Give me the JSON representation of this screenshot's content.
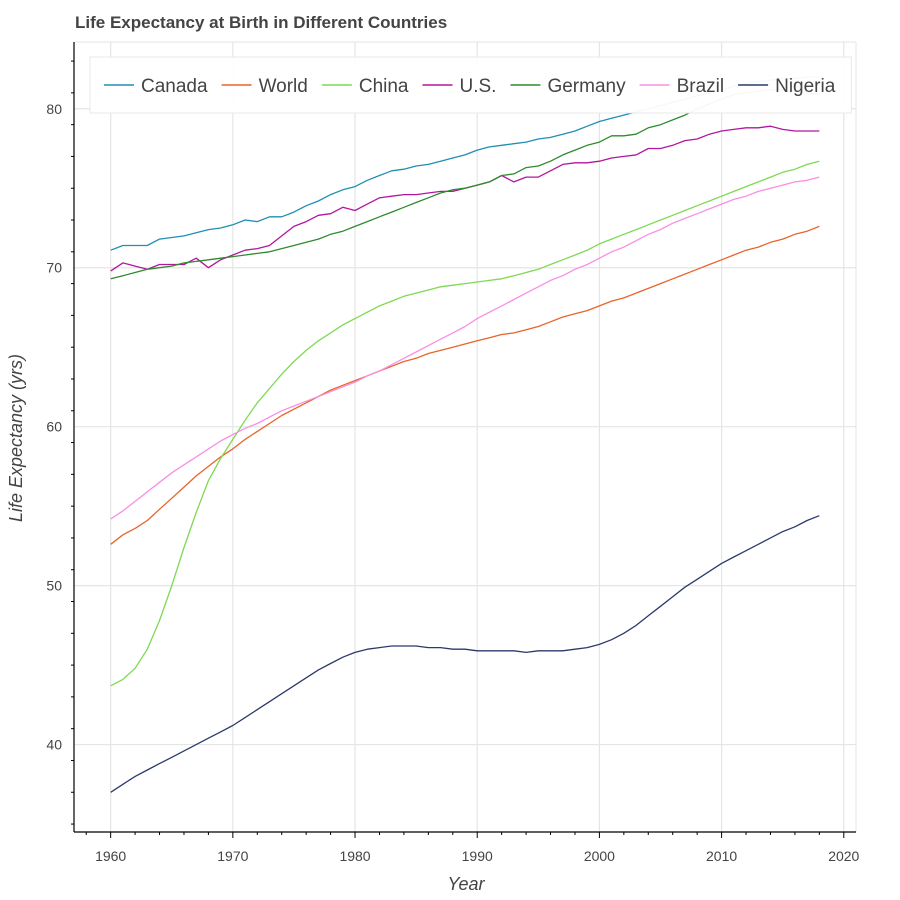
{
  "chart_data": {
    "type": "line",
    "title": "Life Expectancy at Birth in Different Countries",
    "xlabel": "Year",
    "ylabel": "Life Expectancy (yrs)",
    "xlim": [
      1957,
      2021
    ],
    "ylim": [
      34.5,
      84.2
    ],
    "x_ticks": [
      1960,
      1970,
      1980,
      1990,
      2000,
      2010,
      2020
    ],
    "y_ticks": [
      40,
      50,
      60,
      70,
      80
    ],
    "grid": true,
    "legend_position": "top",
    "series": [
      {
        "name": "Canada",
        "color": "#1f8fb3",
        "x": [
          1960,
          1961,
          1962,
          1963,
          1964,
          1965,
          1966,
          1967,
          1968,
          1969,
          1970,
          1971,
          1972,
          1973,
          1974,
          1975,
          1976,
          1977,
          1978,
          1979,
          1980,
          1981,
          1982,
          1983,
          1984,
          1985,
          1986,
          1987,
          1988,
          1989,
          1990,
          1991,
          1992,
          1993,
          1994,
          1995,
          1996,
          1997,
          1998,
          1999,
          2000,
          2001,
          2002,
          2003,
          2004,
          2005,
          2006,
          2007,
          2008,
          2009,
          2010,
          2011,
          2012,
          2013,
          2014,
          2015,
          2016,
          2017,
          2018
        ],
        "values": [
          71.1,
          71.4,
          71.4,
          71.4,
          71.8,
          71.9,
          72.0,
          72.2,
          72.4,
          72.5,
          72.7,
          73.0,
          72.9,
          73.2,
          73.2,
          73.5,
          73.9,
          74.2,
          74.6,
          74.9,
          75.1,
          75.5,
          75.8,
          76.1,
          76.2,
          76.4,
          76.5,
          76.7,
          76.9,
          77.1,
          77.4,
          77.6,
          77.7,
          77.8,
          77.9,
          78.1,
          78.2,
          78.4,
          78.6,
          78.9,
          79.2,
          79.4,
          79.6,
          79.8,
          80.0,
          80.2,
          80.4,
          80.6,
          80.8,
          81.0,
          81.2,
          81.4,
          81.6,
          81.7,
          81.8,
          81.9,
          81.9,
          82.0,
          82.0
        ]
      },
      {
        "name": "World",
        "color": "#e8642a",
        "x": [
          1960,
          1961,
          1962,
          1963,
          1964,
          1965,
          1966,
          1967,
          1968,
          1969,
          1970,
          1971,
          1972,
          1973,
          1974,
          1975,
          1976,
          1977,
          1978,
          1979,
          1980,
          1981,
          1982,
          1983,
          1984,
          1985,
          1986,
          1987,
          1988,
          1989,
          1990,
          1991,
          1992,
          1993,
          1994,
          1995,
          1996,
          1997,
          1998,
          1999,
          2000,
          2001,
          2002,
          2003,
          2004,
          2005,
          2006,
          2007,
          2008,
          2009,
          2010,
          2011,
          2012,
          2013,
          2014,
          2015,
          2016,
          2017,
          2018
        ],
        "values": [
          52.6,
          53.2,
          53.6,
          54.1,
          54.8,
          55.5,
          56.2,
          56.9,
          57.5,
          58.1,
          58.6,
          59.2,
          59.7,
          60.2,
          60.7,
          61.1,
          61.5,
          61.9,
          62.3,
          62.6,
          62.9,
          63.2,
          63.5,
          63.8,
          64.1,
          64.3,
          64.6,
          64.8,
          65.0,
          65.2,
          65.4,
          65.6,
          65.8,
          65.9,
          66.1,
          66.3,
          66.6,
          66.9,
          67.1,
          67.3,
          67.6,
          67.9,
          68.1,
          68.4,
          68.7,
          69.0,
          69.3,
          69.6,
          69.9,
          70.2,
          70.5,
          70.8,
          71.1,
          71.3,
          71.6,
          71.8,
          72.1,
          72.3,
          72.6
        ]
      },
      {
        "name": "China",
        "color": "#7ed952",
        "x": [
          1960,
          1961,
          1962,
          1963,
          1964,
          1965,
          1966,
          1967,
          1968,
          1969,
          1970,
          1971,
          1972,
          1973,
          1974,
          1975,
          1976,
          1977,
          1978,
          1979,
          1980,
          1981,
          1982,
          1983,
          1984,
          1985,
          1986,
          1987,
          1988,
          1989,
          1990,
          1991,
          1992,
          1993,
          1994,
          1995,
          1996,
          1997,
          1998,
          1999,
          2000,
          2001,
          2002,
          2003,
          2004,
          2005,
          2006,
          2007,
          2008,
          2009,
          2010,
          2011,
          2012,
          2013,
          2014,
          2015,
          2016,
          2017,
          2018
        ],
        "values": [
          43.7,
          44.1,
          44.8,
          46.0,
          47.8,
          50.0,
          52.4,
          54.6,
          56.6,
          58.0,
          59.2,
          60.4,
          61.5,
          62.4,
          63.3,
          64.1,
          64.8,
          65.4,
          65.9,
          66.4,
          66.8,
          67.2,
          67.6,
          67.9,
          68.2,
          68.4,
          68.6,
          68.8,
          68.9,
          69.0,
          69.1,
          69.2,
          69.3,
          69.5,
          69.7,
          69.9,
          70.2,
          70.5,
          70.8,
          71.1,
          71.5,
          71.8,
          72.1,
          72.4,
          72.7,
          73.0,
          73.3,
          73.6,
          73.9,
          74.2,
          74.5,
          74.8,
          75.1,
          75.4,
          75.7,
          76.0,
          76.2,
          76.5,
          76.7
        ]
      },
      {
        "name": "U.S.",
        "color": "#b3169e",
        "x": [
          1960,
          1961,
          1962,
          1963,
          1964,
          1965,
          1966,
          1967,
          1968,
          1969,
          1970,
          1971,
          1972,
          1973,
          1974,
          1975,
          1976,
          1977,
          1978,
          1979,
          1980,
          1981,
          1982,
          1983,
          1984,
          1985,
          1986,
          1987,
          1988,
          1989,
          1990,
          1991,
          1992,
          1993,
          1994,
          1995,
          1996,
          1997,
          1998,
          1999,
          2000,
          2001,
          2002,
          2003,
          2004,
          2005,
          2006,
          2007,
          2008,
          2009,
          2010,
          2011,
          2012,
          2013,
          2014,
          2015,
          2016,
          2017,
          2018
        ],
        "values": [
          69.8,
          70.3,
          70.1,
          69.9,
          70.2,
          70.2,
          70.2,
          70.6,
          70.0,
          70.5,
          70.8,
          71.1,
          71.2,
          71.4,
          72.0,
          72.6,
          72.9,
          73.3,
          73.4,
          73.8,
          73.6,
          74.0,
          74.4,
          74.5,
          74.6,
          74.6,
          74.7,
          74.8,
          74.8,
          75.0,
          75.2,
          75.4,
          75.8,
          75.4,
          75.7,
          75.7,
          76.1,
          76.5,
          76.6,
          76.6,
          76.7,
          76.9,
          77.0,
          77.1,
          77.5,
          77.5,
          77.7,
          78.0,
          78.1,
          78.4,
          78.6,
          78.7,
          78.8,
          78.8,
          78.9,
          78.7,
          78.6,
          78.6,
          78.6
        ]
      },
      {
        "name": "Germany",
        "color": "#2e8b2e",
        "x": [
          1960,
          1961,
          1962,
          1963,
          1964,
          1965,
          1966,
          1967,
          1968,
          1969,
          1970,
          1971,
          1972,
          1973,
          1974,
          1975,
          1976,
          1977,
          1978,
          1979,
          1980,
          1981,
          1982,
          1983,
          1984,
          1985,
          1986,
          1987,
          1988,
          1989,
          1990,
          1991,
          1992,
          1993,
          1994,
          1995,
          1996,
          1997,
          1998,
          1999,
          2000,
          2001,
          2002,
          2003,
          2004,
          2005,
          2006,
          2007,
          2008,
          2009,
          2010,
          2011,
          2012,
          2013,
          2014,
          2015,
          2016,
          2017,
          2018
        ],
        "values": [
          69.3,
          69.5,
          69.7,
          69.9,
          70.0,
          70.1,
          70.3,
          70.4,
          70.5,
          70.6,
          70.7,
          70.8,
          70.9,
          71.0,
          71.2,
          71.4,
          71.6,
          71.8,
          72.1,
          72.3,
          72.6,
          72.9,
          73.2,
          73.5,
          73.8,
          74.1,
          74.4,
          74.7,
          74.9,
          75.0,
          75.2,
          75.4,
          75.8,
          75.9,
          76.3,
          76.4,
          76.7,
          77.1,
          77.4,
          77.7,
          77.9,
          78.3,
          78.3,
          78.4,
          78.8,
          79.0,
          79.3,
          79.6,
          80.0,
          80.3,
          80.6,
          80.9,
          81.0,
          81.1,
          81.2,
          81.2,
          81.1,
          81.0,
          80.9
        ]
      },
      {
        "name": "Brazil",
        "color": "#f88fe4",
        "x": [
          1960,
          1961,
          1962,
          1963,
          1964,
          1965,
          1966,
          1967,
          1968,
          1969,
          1970,
          1971,
          1972,
          1973,
          1974,
          1975,
          1976,
          1977,
          1978,
          1979,
          1980,
          1981,
          1982,
          1983,
          1984,
          1985,
          1986,
          1987,
          1988,
          1989,
          1990,
          1991,
          1992,
          1993,
          1994,
          1995,
          1996,
          1997,
          1998,
          1999,
          2000,
          2001,
          2002,
          2003,
          2004,
          2005,
          2006,
          2007,
          2008,
          2009,
          2010,
          2011,
          2012,
          2013,
          2014,
          2015,
          2016,
          2017,
          2018
        ],
        "values": [
          54.2,
          54.7,
          55.3,
          55.9,
          56.5,
          57.1,
          57.6,
          58.1,
          58.6,
          59.1,
          59.5,
          59.9,
          60.2,
          60.6,
          61.0,
          61.3,
          61.6,
          61.9,
          62.2,
          62.5,
          62.8,
          63.2,
          63.5,
          63.9,
          64.3,
          64.7,
          65.1,
          65.5,
          65.9,
          66.3,
          66.8,
          67.2,
          67.6,
          68.0,
          68.4,
          68.8,
          69.2,
          69.5,
          69.9,
          70.2,
          70.6,
          71.0,
          71.3,
          71.7,
          72.1,
          72.4,
          72.8,
          73.1,
          73.4,
          73.7,
          74.0,
          74.3,
          74.5,
          74.8,
          75.0,
          75.2,
          75.4,
          75.5,
          75.7
        ]
      },
      {
        "name": "Nigeria",
        "color": "#2c3a6b",
        "x": [
          1960,
          1961,
          1962,
          1963,
          1964,
          1965,
          1966,
          1967,
          1968,
          1969,
          1970,
          1971,
          1972,
          1973,
          1974,
          1975,
          1976,
          1977,
          1978,
          1979,
          1980,
          1981,
          1982,
          1983,
          1984,
          1985,
          1986,
          1987,
          1988,
          1989,
          1990,
          1991,
          1992,
          1993,
          1994,
          1995,
          1996,
          1997,
          1998,
          1999,
          2000,
          2001,
          2002,
          2003,
          2004,
          2005,
          2006,
          2007,
          2008,
          2009,
          2010,
          2011,
          2012,
          2013,
          2014,
          2015,
          2016,
          2017,
          2018
        ],
        "values": [
          37.0,
          37.5,
          38.0,
          38.4,
          38.8,
          39.2,
          39.6,
          40.0,
          40.4,
          40.8,
          41.2,
          41.7,
          42.2,
          42.7,
          43.2,
          43.7,
          44.2,
          44.7,
          45.1,
          45.5,
          45.8,
          46.0,
          46.1,
          46.2,
          46.2,
          46.2,
          46.1,
          46.1,
          46.0,
          46.0,
          45.9,
          45.9,
          45.9,
          45.9,
          45.8,
          45.9,
          45.9,
          45.9,
          46.0,
          46.1,
          46.3,
          46.6,
          47.0,
          47.5,
          48.1,
          48.7,
          49.3,
          49.9,
          50.4,
          50.9,
          51.4,
          51.8,
          52.2,
          52.6,
          53.0,
          53.4,
          53.7,
          54.1,
          54.4
        ]
      }
    ]
  }
}
